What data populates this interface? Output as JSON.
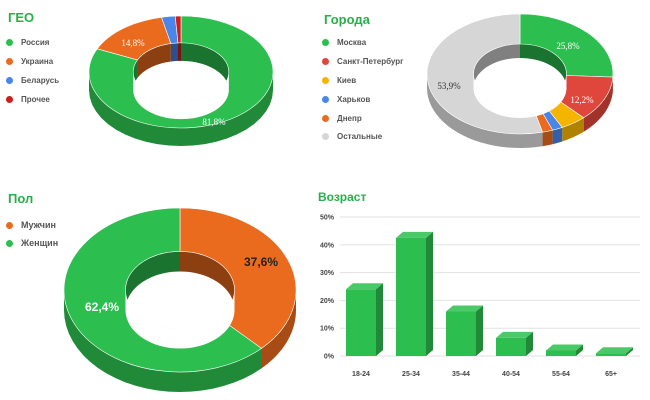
{
  "colors": {
    "green": "#2cbf4f",
    "orange": "#ea6a1e",
    "blue": "#4a86e8",
    "red": "#cc1f1f",
    "yellow": "#f4b400",
    "crimson": "#e0473c",
    "gray": "#d6d6d6"
  },
  "chart_data": [
    {
      "type": "pie",
      "title": "ГЕО",
      "labels": [
        "Россия",
        "Украина",
        "Беларусь",
        "Прочее"
      ],
      "values": [
        81.8,
        14.8,
        2.4,
        1.0
      ],
      "data_labels": [
        "81,8%",
        "14,8%",
        "",
        ""
      ],
      "colors": [
        "#2cbf4f",
        "#ea6a1e",
        "#4a86e8",
        "#cc1f1f"
      ],
      "legend": "left"
    },
    {
      "type": "pie",
      "title": "Города",
      "labels": [
        "Москва",
        "Санкт-Петербург",
        "Киев",
        "Харьков",
        "Днепр",
        "Остальные"
      ],
      "values": [
        25.8,
        12.2,
        4.5,
        1.8,
        1.8,
        53.9
      ],
      "data_labels": [
        "25,8%",
        "12,2%",
        "",
        "",
        "",
        "53,9%"
      ],
      "colors": [
        "#2cbf4f",
        "#e0473c",
        "#f4b400",
        "#4a86e8",
        "#ea6a1e",
        "#d6d6d6"
      ],
      "legend": "left"
    },
    {
      "type": "pie",
      "title": "Пол",
      "labels": [
        "Мужчин",
        "Женщин"
      ],
      "values": [
        37.6,
        62.4
      ],
      "data_labels": [
        "37,6%",
        "62,4%"
      ],
      "colors": [
        "#ea6a1e",
        "#2cbf4f"
      ],
      "legend": "left"
    },
    {
      "type": "bar",
      "title": "Возраст",
      "categories": [
        "18-24",
        "25-34",
        "35-44",
        "40-54",
        "55-64",
        "65+"
      ],
      "values": [
        24,
        42.5,
        16,
        6.5,
        2,
        1
      ],
      "yticks": [
        "0%",
        "10%",
        "20%",
        "30%",
        "40%",
        "50%"
      ],
      "ylim": [
        0,
        50
      ],
      "grid": true,
      "color": "#2cbf4f"
    }
  ]
}
